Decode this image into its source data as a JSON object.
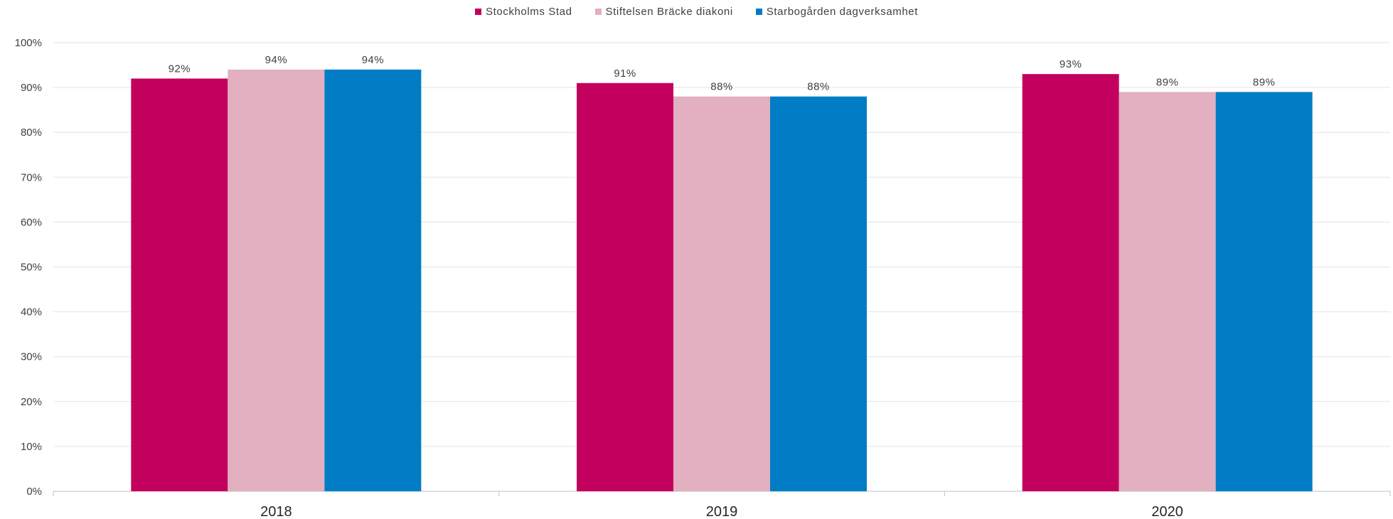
{
  "chart_data": {
    "type": "bar",
    "categories": [
      "2018",
      "2019",
      "2020"
    ],
    "series": [
      {
        "name": "Stockholms Stad",
        "color": "#c4005f",
        "values": [
          92,
          91,
          93
        ],
        "labels": [
          "92%",
          "91%",
          "93%"
        ]
      },
      {
        "name": "Stiftelsen Bräcke diakoni",
        "color": "#e2b0c0",
        "values": [
          94,
          88,
          89
        ],
        "labels": [
          "94%",
          "88%",
          "89%"
        ]
      },
      {
        "name": "Starbogården dagverksamhet",
        "color": "#007dc5",
        "values": [
          94,
          88,
          89
        ],
        "labels": [
          "94%",
          "88%",
          "89%"
        ]
      }
    ],
    "ylim": [
      0,
      100
    ],
    "yticks": [
      "0%",
      "10%",
      "20%",
      "30%",
      "40%",
      "50%",
      "60%",
      "70%",
      "80%",
      "90%",
      "100%"
    ],
    "grid": true,
    "legend_position": "top-center"
  }
}
